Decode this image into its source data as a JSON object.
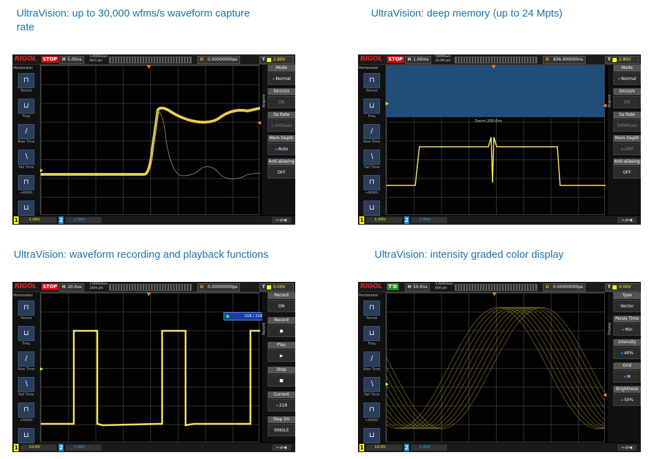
{
  "captions": {
    "tl": "UltraVision: up to 30,000 wfms/s waveform capture rate",
    "tr": "UltraVision: deep memory (up to 24 Mpts)",
    "bl": "UltraVision: waveform recording and playback functions",
    "br": "UltraVision: intensity graded color display"
  },
  "common": {
    "logo": "RIGOL",
    "horizontal_title": "Horizontal",
    "left_labels": [
      "Period",
      "Freq",
      "Rise Time",
      "Fall Time",
      "+Width",
      "-Width"
    ],
    "ch1_num": "1",
    "ch2_num": "2",
    "usb": "←⇄◀"
  },
  "screens": {
    "tl": {
      "status": "STOP",
      "h_label": "H",
      "timebase": "5.00ns",
      "sa1": "1.000GSa/s",
      "sa2": "60.0 pts",
      "d_label": "D",
      "delay": "0.00000000ps",
      "t_label": "T",
      "trig_level": "2.80V",
      "menu_side": "Acquire",
      "ch1_scale": "1.00V",
      "ch2_scale": "1.00V",
      "menu": [
        {
          "label": "Mode",
          "value": "Normal"
        },
        {
          "label": "Sin(x)/x",
          "value": "ON"
        },
        {
          "label": "Sa Rate",
          "value": "1.00GSa/s"
        },
        {
          "label": "Mem Depth",
          "value": "Auto"
        },
        {
          "label": "Anti-aliasing",
          "value": "OFF"
        }
      ]
    },
    "tr": {
      "status": "STOP",
      "h_label": "H",
      "timebase": "1.00ms",
      "sa1": "500MSa/s",
      "sa2": "24.0M pts",
      "d_label": "D",
      "delay": "836.000000ns",
      "t_label": "T",
      "trig_level": "2.80V",
      "menu_side": "Acquire",
      "zoom": "Zoom:200.0ns",
      "ch1_scale": "1.00V",
      "ch2_scale": "1.00V",
      "menu": [
        {
          "label": "Mode",
          "value": "Normal"
        },
        {
          "label": "Sin(x)/x",
          "value": "ON"
        },
        {
          "label": "Sa Rate",
          "value": "500MSa/s"
        },
        {
          "label": "Mem Depth",
          "value": "24M"
        },
        {
          "label": "Anti-aliasing",
          "value": "OFF"
        }
      ]
    },
    "bl": {
      "status": "STOP",
      "h_label": "H",
      "timebase": "20.0us",
      "sa1": "1.000GSa/s",
      "sa2": "240k pts",
      "d_label": "D",
      "delay": "0.00000000ps",
      "t_label": "T",
      "trig_level": "0.00V",
      "menu_side": "Record",
      "frame": "218 / 218",
      "ch1_scale": "10.0V",
      "ch2_scale": "1.00V",
      "menu": [
        {
          "label": "Record",
          "value": "ON"
        },
        {
          "label": "Record",
          "value": "●"
        },
        {
          "label": "Play",
          "value": "▶"
        },
        {
          "label": "Stop",
          "value": "■"
        },
        {
          "label": "Current",
          "value": "218"
        },
        {
          "label": "Step Dir",
          "value": "SINGLE"
        }
      ]
    },
    "br": {
      "status": "T'D",
      "h_label": "H",
      "timebase": "50.0ns",
      "sa1": "1.000GSa/s",
      "sa2": "600 pts",
      "d_label": "D",
      "delay": "0.00000000ps",
      "t_label": "T",
      "trig_level": "0.00V",
      "menu_side": "Display",
      "ch1_scale": "10.0V",
      "ch2_scale": "1.00V",
      "menu": [
        {
          "label": "Type",
          "value": "Vector"
        },
        {
          "label": "Persis Time",
          "value": "Min"
        },
        {
          "label": "Intensity",
          "value": "40%"
        },
        {
          "label": "Grid",
          "value": "⊞"
        },
        {
          "label": "Brightness",
          "value": "50%"
        }
      ]
    }
  }
}
